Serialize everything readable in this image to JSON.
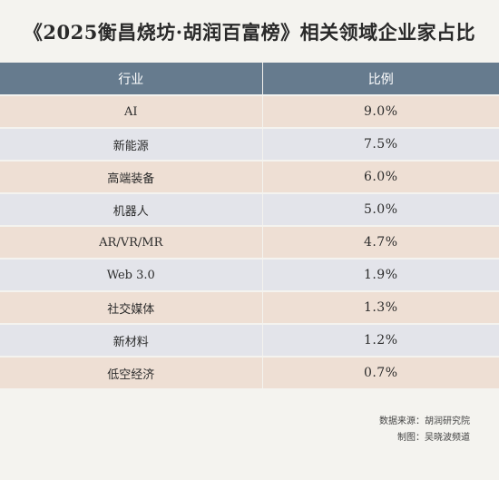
{
  "title": "《2025衡昌烧坊·胡润百富榜》相关领域企业家占比",
  "colors": {
    "header_bg": "#667b8e",
    "row_odd_bg": "#eedfd4",
    "row_even_bg": "#e3e4ea",
    "page_bg": "#f4f3ef"
  },
  "chart_data": {
    "type": "table",
    "title": "《2025衡昌烧坊·胡润百富榜》相关领域企业家占比",
    "columns": [
      "行业",
      "比例"
    ],
    "rows": [
      {
        "industry": "AI",
        "share": "9.0%"
      },
      {
        "industry": "新能源",
        "share": "7.5%"
      },
      {
        "industry": "高端装备",
        "share": "6.0%"
      },
      {
        "industry": "机器人",
        "share": "5.0%"
      },
      {
        "industry": "AR/VR/MR",
        "share": "4.7%"
      },
      {
        "industry": "Web 3.0",
        "share": "1.9%"
      },
      {
        "industry": "社交媒体",
        "share": "1.3%"
      },
      {
        "industry": "新材料",
        "share": "1.2%"
      },
      {
        "industry": "低空经济",
        "share": "0.7%"
      }
    ],
    "values": [
      9.0,
      7.5,
      6.0,
      5.0,
      4.7,
      1.9,
      1.3,
      1.2,
      0.7
    ]
  },
  "footer": {
    "source": "数据来源：胡润研究院",
    "credit": "制图：吴晓波频道"
  }
}
